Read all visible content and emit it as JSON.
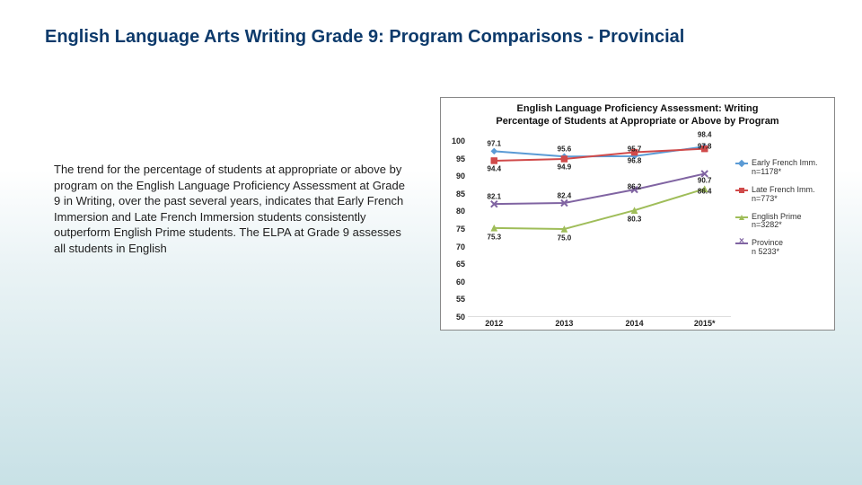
{
  "slide": {
    "title": "English Language Arts Writing  Grade 9: Program Comparisons - Provincial",
    "body": "The trend for the percentage of students at appropriate or above by program on the English Language Proficiency Assessment at Grade 9 in Writing, over the past several years, indicates that Early French Immersion and Late French Immersion students consistently outperform English Prime students. The ELPA at Grade 9 assesses all students in English"
  },
  "chart": {
    "type": "line",
    "title_line1": "English Language Proficiency Assessment: Writing",
    "title_line2": "Percentage of Students at Appropriate or Above by Program",
    "background_color": "#ffffff",
    "border_color": "#888888",
    "plot_border_color": "#bbbbbb",
    "y": {
      "min": 50,
      "max": 100,
      "step": 5
    },
    "x_categories": [
      "2012",
      "2013",
      "2014",
      "2015*"
    ],
    "line_width": 2,
    "marker_size": 5,
    "series": [
      {
        "name": "Early French Imm.",
        "note": "n=1178*",
        "color": "#5b9bd5",
        "marker": "diamond",
        "values": [
          97.1,
          95.6,
          95.7,
          98.4
        ],
        "label_offsets_y": [
          -8,
          -8,
          -8,
          -13
        ]
      },
      {
        "name": "Late French Imm.",
        "note": "n=773*",
        "color": "#d04a4a",
        "marker": "square",
        "values": [
          94.4,
          94.9,
          96.8,
          97.8
        ],
        "label_offsets_y": [
          9,
          9,
          9,
          -3
        ]
      },
      {
        "name": "English Prime",
        "note": "n=3282*",
        "color": "#9fbd59",
        "marker": "triangle",
        "values": [
          75.3,
          75.0,
          80.3,
          86.4
        ],
        "label_offsets_y": [
          10,
          10,
          10,
          3
        ]
      },
      {
        "name": "Province",
        "note": "n  5233*",
        "color": "#8064a2",
        "marker": "x",
        "values": [
          82.1,
          82.4,
          86.2,
          90.7
        ],
        "label_offsets_y": [
          -8,
          -8,
          -3,
          8
        ]
      }
    ]
  }
}
